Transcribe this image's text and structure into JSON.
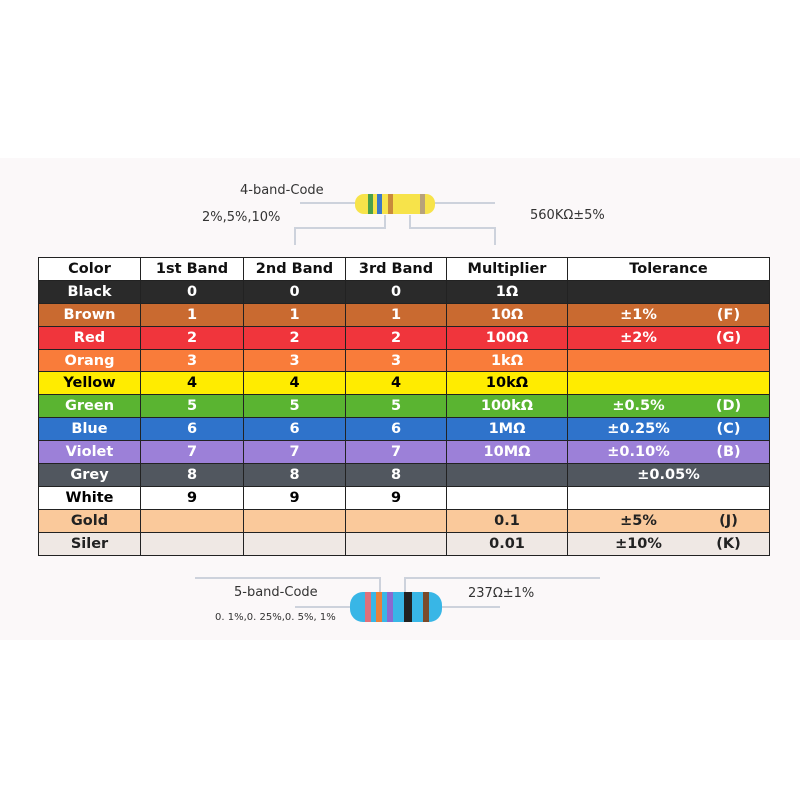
{
  "header": {
    "four_band": {
      "title": "4-band-Code",
      "tolerances": "2%,5%,10%",
      "example": "560KΩ±5%"
    }
  },
  "table": {
    "columns": [
      "Color",
      "1st Band",
      "2nd Band",
      "3rd Band",
      "Multiplier",
      "Tolerance"
    ],
    "rows": [
      {
        "name": "Black",
        "band1": "0",
        "band2": "0",
        "band3": "0",
        "multiplier": "1Ω",
        "color": "#2a2a2a",
        "text_color": "#ffffff"
      },
      {
        "name": "Brown",
        "band1": "1",
        "band2": "1",
        "band3": "1",
        "multiplier": "10Ω",
        "tolerance": "±1%",
        "code": "(F)",
        "color": "#c96a30",
        "text_color": "#ffffff"
      },
      {
        "name": "Red",
        "band1": "2",
        "band2": "2",
        "band3": "2",
        "multiplier": "100Ω",
        "tolerance": "±2%",
        "code": "(G)",
        "color": "#f0353c",
        "text_color": "#ffffff"
      },
      {
        "name": "Orang",
        "band1": "3",
        "band2": "3",
        "band3": "3",
        "multiplier": "1kΩ",
        "color": "#f97c3a",
        "text_color": "#ffffff"
      },
      {
        "name": "Yellow",
        "band1": "4",
        "band2": "4",
        "band3": "4",
        "multiplier": "10kΩ",
        "color": "#ffec00",
        "text_color": "#000000"
      },
      {
        "name": "Green",
        "band1": "5",
        "band2": "5",
        "band3": "5",
        "multiplier": "100kΩ",
        "tolerance": "±0.5%",
        "code": "(D)",
        "color": "#5ab431",
        "text_color": "#ffffff"
      },
      {
        "name": "Blue",
        "band1": "6",
        "band2": "6",
        "band3": "6",
        "multiplier": "1MΩ",
        "tolerance": "±0.25%",
        "code": "(C)",
        "color": "#2f73cb",
        "text_color": "#ffffff"
      },
      {
        "name": "Violet",
        "band1": "7",
        "band2": "7",
        "band3": "7",
        "multiplier": "10MΩ",
        "tolerance": "±0.10%",
        "code": "(B)",
        "color": "#9c80d8",
        "text_color": "#ffffff"
      },
      {
        "name": "Grey",
        "band1": "8",
        "band2": "8",
        "band3": "8",
        "tolerance": "±0.05%",
        "color": "#51575f",
        "text_color": "#ffffff"
      },
      {
        "name": "White",
        "band1": "9",
        "band2": "9",
        "band3": "9",
        "color": "#ffffff",
        "text_color": "#000000"
      },
      {
        "name": "Gold",
        "multiplier": "0.1",
        "tolerance": "±5%",
        "code": "(J)",
        "color": "#fac99b",
        "text_color": "#222222"
      },
      {
        "name": "Siler",
        "multiplier": "0.01",
        "tolerance": "±10%",
        "code": "(K)",
        "color": "#efe8e4",
        "text_color": "#222222"
      }
    ]
  },
  "footer": {
    "five_band": {
      "title": "5-band-Code",
      "tolerances": "0. 1%,0. 25%,0. 5%, 1%",
      "example": "237Ω±1%"
    }
  }
}
